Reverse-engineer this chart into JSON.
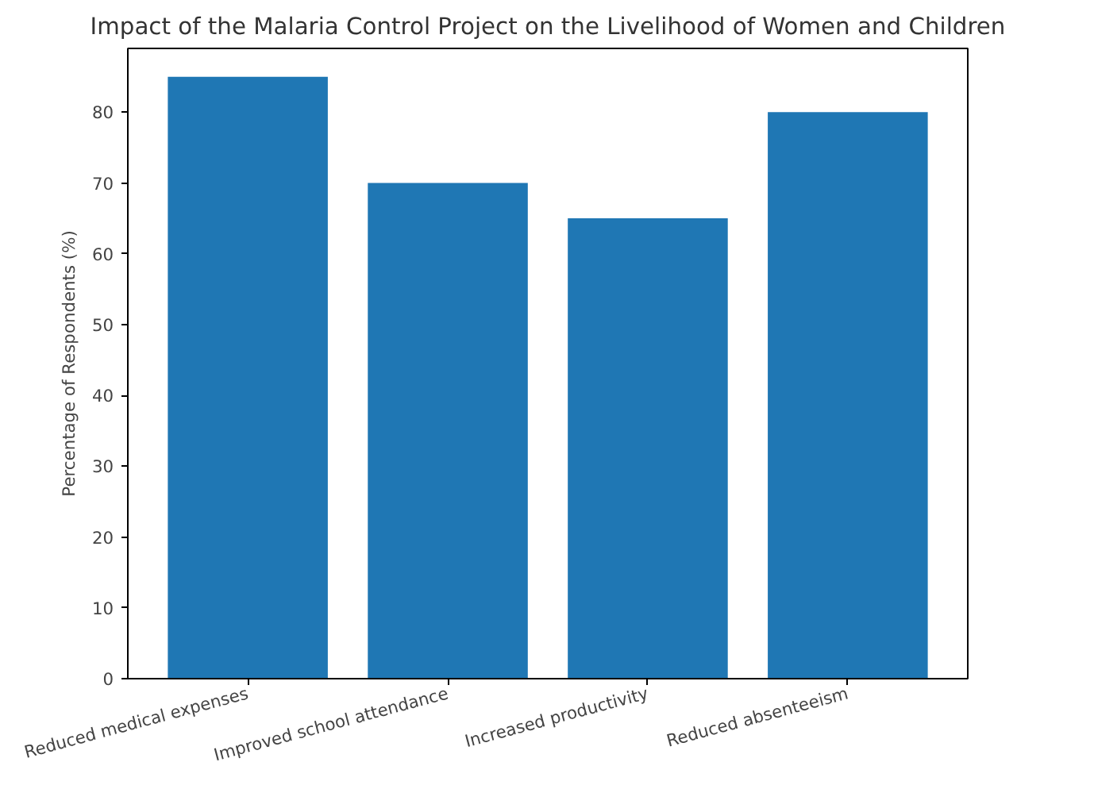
{
  "chart_data": {
    "type": "bar",
    "title": "Impact of the Malaria Control Project on the Livelihood of Women and Children",
    "ylabel": "Percentage of Respondents (%)",
    "categories": [
      "Reduced medical expenses",
      "Improved school attendance",
      "Increased productivity",
      "Reduced absenteeism"
    ],
    "values": [
      85,
      70,
      65,
      80
    ],
    "color": "#1f77b4",
    "ylim": [
      0,
      89
    ],
    "yticks": [
      0,
      10,
      20,
      30,
      40,
      50,
      60,
      70,
      80
    ],
    "grid": false
  }
}
